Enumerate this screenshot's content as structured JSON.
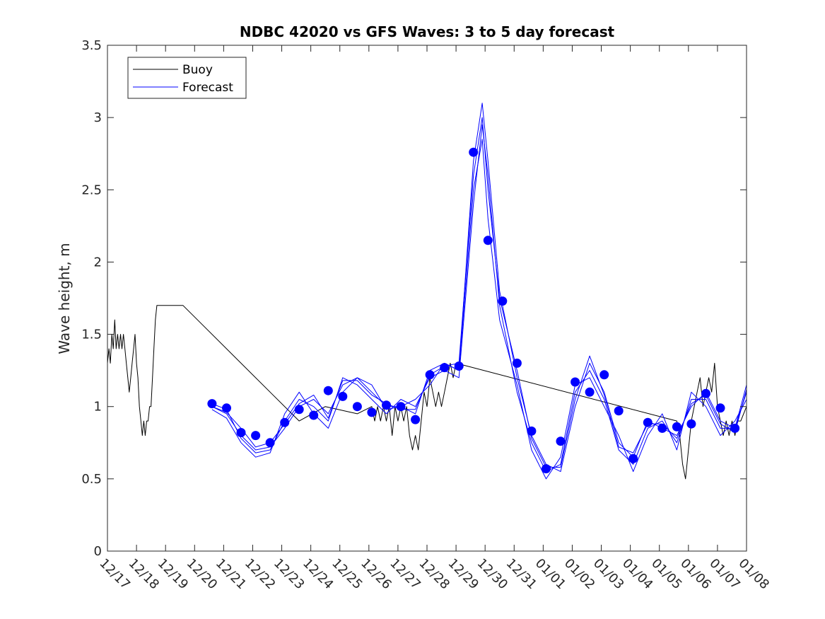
{
  "chart_data": {
    "type": "line",
    "title": "NDBC 42020 vs GFS Waves: 3 to 5 day forecast",
    "xlabel": "",
    "ylabel": "Wave height, m",
    "x_unit": "days since 12/17 00:00",
    "xlim": [
      0,
      22
    ],
    "ylim": [
      0,
      3.5
    ],
    "xticks": [
      0,
      1,
      2,
      3,
      4,
      5,
      6,
      7,
      8,
      9,
      10,
      11,
      12,
      13,
      14,
      15,
      16,
      17,
      18,
      19,
      20,
      21,
      22
    ],
    "xtick_labels": [
      "12/17",
      "12/18",
      "12/19",
      "12/20",
      "12/21",
      "12/22",
      "12/23",
      "12/24",
      "12/25",
      "12/26",
      "12/27",
      "12/28",
      "12/29",
      "12/30",
      "12/31",
      "01/01",
      "01/02",
      "01/03",
      "01/04",
      "01/05",
      "01/06",
      "01/07",
      "01/08"
    ],
    "yticks": [
      0,
      0.5,
      1,
      1.5,
      2,
      2.5,
      3,
      3.5
    ],
    "ytick_labels": [
      "0",
      "0.5",
      "1",
      "1.5",
      "2",
      "2.5",
      "3",
      "3.5"
    ],
    "legend": {
      "position": "top-left",
      "entries": [
        {
          "label": "Buoy",
          "color": "#000000"
        },
        {
          "label": "Forecast",
          "color": "#0000ff"
        }
      ]
    },
    "buoy": {
      "name": "Buoy",
      "color": "#000000",
      "x": [
        0.0,
        0.05,
        0.1,
        0.15,
        0.2,
        0.25,
        0.3,
        0.35,
        0.4,
        0.45,
        0.5,
        0.55,
        0.6,
        0.65,
        0.7,
        0.75,
        0.8,
        0.85,
        0.9,
        0.95,
        1.0,
        1.05,
        1.1,
        1.15,
        1.2,
        1.25,
        1.3,
        1.35,
        1.4,
        1.45,
        1.5,
        1.55,
        1.6,
        1.65,
        1.7,
        1.75,
        2.6,
        5.6,
        6.6,
        7.5,
        8.6,
        9.1,
        9.2,
        9.3,
        9.4,
        9.5,
        9.6,
        9.7,
        9.8,
        9.9,
        10.0,
        10.1,
        10.2,
        10.3,
        10.4,
        10.5,
        10.6,
        10.7,
        10.8,
        10.9,
        11.0,
        11.1,
        11.2,
        11.3,
        11.4,
        11.5,
        11.6,
        11.7,
        11.8,
        11.9,
        12.0,
        19.6,
        19.7,
        19.8,
        19.9,
        20.0,
        20.1,
        20.2,
        20.3,
        20.4,
        20.5,
        20.6,
        20.7,
        20.8,
        20.9,
        21.0,
        21.1,
        21.2,
        21.3,
        21.4,
        21.5,
        21.6,
        21.7,
        21.8,
        21.9,
        22.0
      ],
      "y": [
        1.3,
        1.4,
        1.3,
        1.5,
        1.4,
        1.6,
        1.4,
        1.5,
        1.4,
        1.5,
        1.4,
        1.5,
        1.4,
        1.3,
        1.2,
        1.1,
        1.2,
        1.3,
        1.4,
        1.5,
        1.3,
        1.2,
        1.0,
        0.9,
        0.8,
        0.9,
        0.8,
        0.9,
        0.9,
        1.0,
        1.0,
        1.2,
        1.4,
        1.6,
        1.7,
        1.7,
        1.7,
        1.1,
        0.9,
        1.0,
        0.95,
        1.0,
        0.9,
        1.0,
        0.9,
        1.0,
        0.9,
        1.0,
        0.8,
        1.0,
        0.9,
        1.0,
        0.9,
        1.0,
        0.8,
        0.7,
        0.8,
        0.7,
        0.9,
        1.1,
        1.0,
        1.2,
        1.1,
        1.0,
        1.1,
        1.0,
        1.1,
        1.2,
        1.3,
        1.2,
        1.3,
        0.9,
        0.8,
        0.6,
        0.5,
        0.7,
        0.9,
        1.0,
        1.1,
        1.2,
        1.0,
        1.1,
        1.2,
        1.1,
        1.3,
        1.0,
        0.9,
        0.8,
        0.9,
        0.8,
        0.9,
        0.8,
        0.9,
        0.9,
        0.95,
        1.0
      ]
    },
    "forecast_lines": [
      {
        "name": "Forecast",
        "color": "#0000ff",
        "x": [
          3.6,
          4.1,
          4.6,
          5.1,
          5.6,
          6.1,
          6.6,
          7.1,
          7.6,
          8.1,
          8.6,
          9.1,
          9.6,
          10.1,
          10.6,
          11.1,
          11.6,
          12.1,
          12.6,
          12.9,
          13.1,
          13.5,
          14.1,
          14.6,
          15.1,
          15.6,
          16.1,
          16.6,
          17.1,
          17.6,
          18.1,
          18.6,
          19.1,
          19.6,
          20.1,
          20.6,
          21.1,
          21.6,
          22.0
        ],
        "y": [
          1.0,
          0.95,
          0.8,
          0.7,
          0.72,
          0.85,
          1.0,
          1.05,
          0.95,
          1.15,
          1.2,
          1.1,
          1.0,
          1.0,
          0.95,
          1.25,
          1.3,
          1.25,
          2.7,
          3.1,
          2.7,
          1.8,
          1.2,
          0.8,
          0.6,
          0.55,
          1.0,
          1.3,
          1.1,
          0.75,
          0.65,
          0.9,
          0.85,
          0.8,
          1.0,
          1.1,
          0.9,
          0.85,
          1.15
        ]
      },
      {
        "name": "Forecast",
        "color": "#0000ff",
        "x": [
          3.6,
          4.1,
          4.6,
          5.1,
          5.6,
          6.1,
          6.6,
          7.1,
          7.6,
          8.1,
          8.6,
          9.1,
          9.6,
          10.1,
          10.6,
          11.1,
          11.6,
          12.1,
          12.6,
          12.9,
          13.1,
          13.5,
          14.1,
          14.6,
          15.1,
          15.6,
          16.1,
          16.6,
          17.1,
          17.6,
          18.1,
          18.6,
          19.1,
          19.6,
          20.1,
          20.6,
          21.1,
          21.6,
          22.0
        ],
        "y": [
          1.02,
          0.98,
          0.78,
          0.68,
          0.7,
          0.9,
          1.05,
          1.0,
          0.9,
          1.2,
          1.15,
          1.05,
          0.95,
          1.05,
          1.0,
          1.2,
          1.25,
          1.2,
          2.4,
          2.95,
          2.6,
          1.7,
          1.1,
          0.75,
          0.55,
          0.6,
          1.1,
          1.25,
          1.05,
          0.7,
          0.6,
          0.85,
          0.9,
          0.75,
          1.05,
          1.05,
          0.85,
          0.85,
          1.1
        ]
      },
      {
        "name": "Forecast",
        "color": "#0000ff",
        "x": [
          3.6,
          4.1,
          4.6,
          5.1,
          5.6,
          6.1,
          6.6,
          7.1,
          7.6,
          8.1,
          8.6,
          9.1,
          9.6,
          10.1,
          10.6,
          11.1,
          11.6,
          12.1,
          12.6,
          12.9,
          13.1,
          13.5,
          14.1,
          14.6,
          15.1,
          15.6,
          16.1,
          16.6,
          17.1,
          17.6,
          18.1,
          18.6,
          19.1,
          19.6,
          20.1,
          20.6,
          21.1,
          21.6,
          22.0
        ],
        "y": [
          0.98,
          0.92,
          0.75,
          0.65,
          0.68,
          0.95,
          1.1,
          0.95,
          0.85,
          1.1,
          1.2,
          1.15,
          0.98,
          1.0,
          1.05,
          1.15,
          1.3,
          1.25,
          2.5,
          2.85,
          2.3,
          1.6,
          1.15,
          0.7,
          0.5,
          0.65,
          1.15,
          1.2,
          1.0,
          0.8,
          0.55,
          0.8,
          0.95,
          0.7,
          1.1,
          1.0,
          0.8,
          0.9,
          1.05
        ]
      },
      {
        "name": "Forecast",
        "color": "#0000ff",
        "x": [
          3.6,
          4.1,
          4.6,
          5.1,
          5.6,
          6.1,
          6.6,
          7.1,
          7.6,
          8.1,
          8.6,
          9.1,
          9.6,
          10.1,
          10.6,
          11.1,
          11.6,
          12.1,
          12.6,
          12.9,
          13.1,
          13.5,
          14.1,
          14.6,
          15.1,
          15.6,
          16.1,
          16.6,
          17.1,
          17.6,
          18.1,
          18.6,
          19.1,
          19.6,
          20.1,
          20.6,
          21.1,
          21.6,
          22.0
        ],
        "y": [
          1.0,
          0.96,
          0.85,
          0.72,
          0.75,
          0.88,
          1.02,
          1.08,
          0.92,
          1.18,
          1.18,
          1.08,
          1.02,
          0.98,
          0.98,
          1.22,
          1.28,
          1.3,
          2.6,
          3.0,
          2.5,
          1.75,
          1.25,
          0.78,
          0.58,
          0.58,
          1.05,
          1.35,
          1.08,
          0.72,
          0.68,
          0.88,
          0.88,
          0.78,
          1.02,
          1.08,
          0.88,
          0.82,
          1.12
        ]
      }
    ],
    "forecast_points": {
      "name": "Forecast",
      "color": "#0000ff",
      "x": [
        3.6,
        4.1,
        4.6,
        5.1,
        5.6,
        6.1,
        6.6,
        7.1,
        7.6,
        8.1,
        8.6,
        9.1,
        9.6,
        10.1,
        10.6,
        11.1,
        11.6,
        12.1,
        12.6,
        13.1,
        13.6,
        14.1,
        14.6,
        15.1,
        15.6,
        16.1,
        16.6,
        17.1,
        17.6,
        18.1,
        18.6,
        19.1,
        19.6,
        20.1,
        20.6,
        21.1,
        21.6
      ],
      "y": [
        1.02,
        0.99,
        0.82,
        0.8,
        0.75,
        0.89,
        0.98,
        0.94,
        1.11,
        1.07,
        1.0,
        0.96,
        1.01,
        1.0,
        0.91,
        1.22,
        1.27,
        1.28,
        2.76,
        2.15,
        1.73,
        1.3,
        0.83,
        0.57,
        0.76,
        1.17,
        1.1,
        1.22,
        0.97,
        0.64,
        0.89,
        0.85,
        0.86,
        0.88,
        1.09,
        0.99,
        0.85
      ]
    }
  }
}
